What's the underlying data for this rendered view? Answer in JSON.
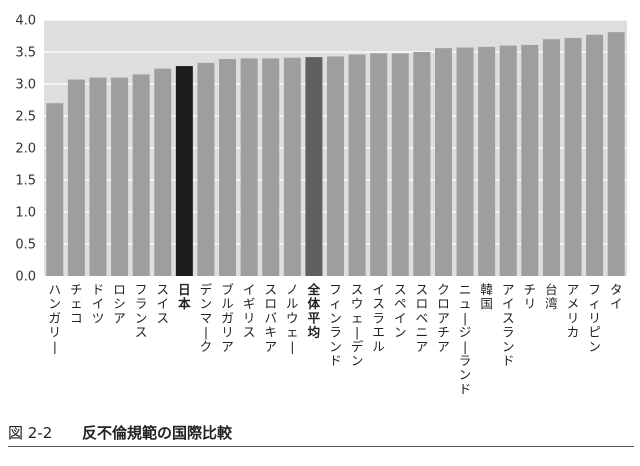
{
  "caption": {
    "figure": "図 2-2",
    "title": "反不倫規範の国際比較"
  },
  "chart_data": {
    "type": "bar",
    "title": "図 2-2 反不倫規範の国際比較",
    "xlabel": "",
    "ylabel": "",
    "ylim": [
      0,
      4.0
    ],
    "yticks": [
      "0.0",
      "0.5",
      "1.0",
      "1.5",
      "2.0",
      "2.5",
      "3.0",
      "3.5",
      "4.0"
    ],
    "grid": true,
    "categories": [
      "ハンガリー",
      "チェコ",
      "ドイツ",
      "ロシア",
      "フランス",
      "スイス",
      "日本",
      "デンマーク",
      "ブルガリア",
      "イギリス",
      "スロバキア",
      "ノルウェー",
      "全体平均",
      "フィンランド",
      "スウェーデン",
      "イスラエル",
      "スペイン",
      "スロベニア",
      "クロアチア",
      "ニュージーランド",
      "韓国",
      "アイスランド",
      "チリ",
      "台湾",
      "アメリカ",
      "フィリピン",
      "タイ"
    ],
    "values": [
      2.7,
      3.07,
      3.1,
      3.1,
      3.15,
      3.24,
      3.28,
      3.33,
      3.39,
      3.4,
      3.4,
      3.41,
      3.42,
      3.43,
      3.46,
      3.48,
      3.48,
      3.5,
      3.56,
      3.57,
      3.58,
      3.6,
      3.61,
      3.7,
      3.72,
      3.77,
      3.81
    ],
    "highlight": {
      "日本": "#1c1c1c",
      "全体平均": "#5f5f5f"
    },
    "bar_color": "#9e9e9e",
    "plot_background": "#dedede",
    "grid_color": "#ffffff"
  }
}
